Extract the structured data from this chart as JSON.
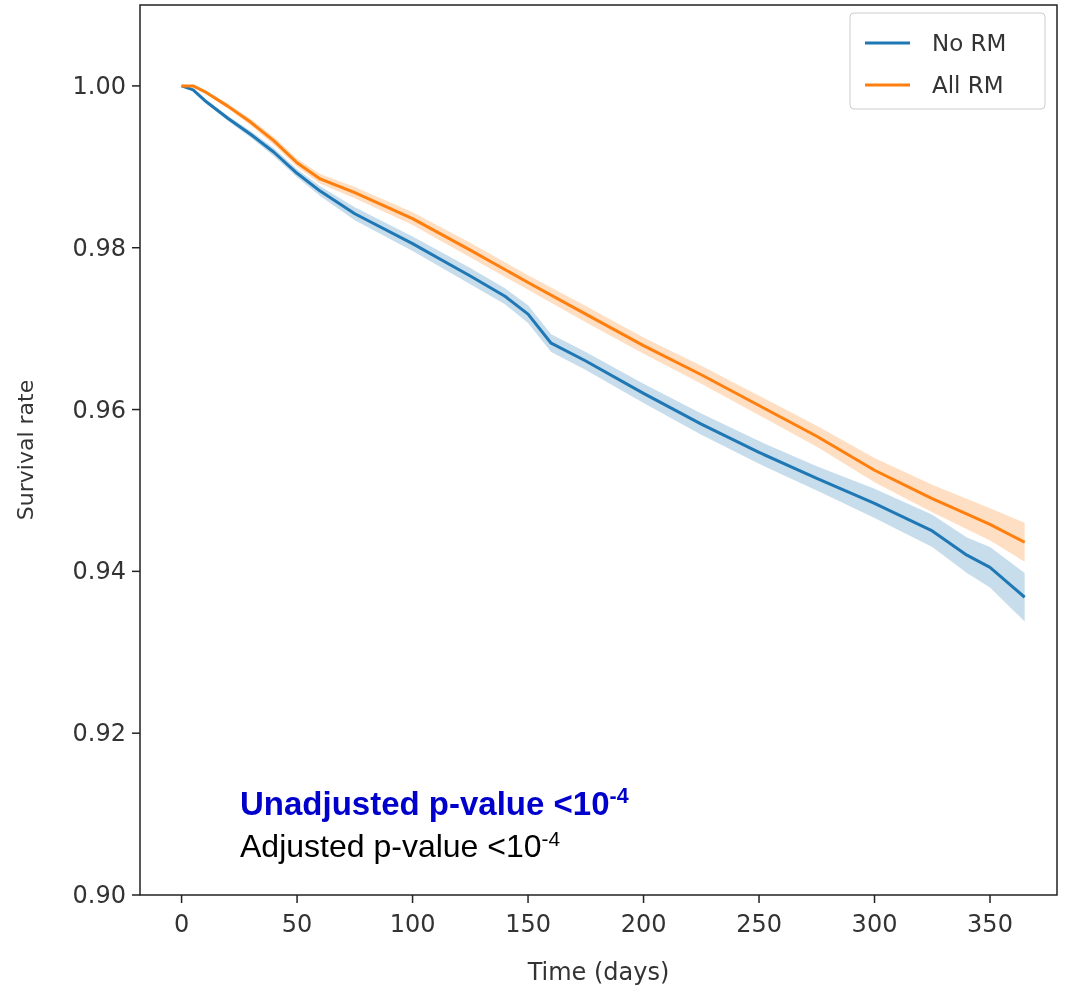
{
  "chart_data": {
    "type": "line",
    "xlabel": "Time (days)",
    "ylabel": "Survival rate",
    "xlim": [
      -18,
      379
    ],
    "ylim": [
      0.9,
      1.01
    ],
    "xticks": [
      0,
      50,
      100,
      150,
      200,
      250,
      300,
      350
    ],
    "yticks": [
      {
        "value": 0.9,
        "label": "0.90"
      },
      0.92,
      0.94,
      0.96,
      0.98,
      {
        "value": 1.0,
        "label": "1.00"
      }
    ],
    "legend": "top right",
    "grid": false,
    "annotations": [
      "Unadjusted p-value <10$^{-4}$",
      "Adjusted p-value <10$^{-4}$"
    ],
    "series": [
      {
        "name": "No RM",
        "color": "#1f77b4",
        "x": [
          0,
          5,
          10,
          20,
          30,
          40,
          50,
          60,
          75,
          100,
          125,
          140,
          150,
          160,
          175,
          200,
          225,
          250,
          275,
          300,
          325,
          340,
          350,
          365
        ],
        "values": [
          1.0,
          0.9995,
          0.9982,
          0.996,
          0.994,
          0.9918,
          0.9892,
          0.987,
          0.9842,
          0.9805,
          0.9765,
          0.974,
          0.9718,
          0.9682,
          0.966,
          0.962,
          0.9582,
          0.9547,
          0.9515,
          0.9484,
          0.945,
          0.942,
          0.9405,
          0.9368
        ],
        "lower": [
          1.0,
          0.9994,
          0.998,
          0.9957,
          0.9936,
          0.9913,
          0.9887,
          0.9864,
          0.9834,
          0.9796,
          0.9755,
          0.973,
          0.9707,
          0.9671,
          0.9649,
          0.9608,
          0.9569,
          0.9533,
          0.95,
          0.9466,
          0.943,
          0.9398,
          0.938,
          0.9338
        ],
        "upper": [
          1.0,
          0.9996,
          0.9984,
          0.9963,
          0.9944,
          0.9923,
          0.9897,
          0.9876,
          0.985,
          0.9814,
          0.9775,
          0.975,
          0.9729,
          0.9693,
          0.9671,
          0.9632,
          0.9595,
          0.9561,
          0.953,
          0.9502,
          0.947,
          0.9442,
          0.943,
          0.9398
        ]
      },
      {
        "name": "All RM",
        "color": "#ff7f0e",
        "x": [
          0,
          5,
          10,
          20,
          30,
          40,
          50,
          60,
          75,
          100,
          125,
          150,
          175,
          200,
          225,
          250,
          275,
          300,
          325,
          350,
          365
        ],
        "values": [
          1.0,
          1.0,
          0.9993,
          0.9975,
          0.9955,
          0.9932,
          0.9905,
          0.9885,
          0.9868,
          0.9836,
          0.9797,
          0.9757,
          0.9718,
          0.9679,
          0.9643,
          0.9605,
          0.9567,
          0.9525,
          0.949,
          0.9458,
          0.9436
        ],
        "lower": [
          1.0,
          0.9999,
          0.9991,
          0.9972,
          0.9951,
          0.9927,
          0.99,
          0.9879,
          0.9861,
          0.9828,
          0.9788,
          0.9748,
          0.9708,
          0.9669,
          0.9632,
          0.9593,
          0.9554,
          0.951,
          0.9473,
          0.9438,
          0.9412
        ],
        "upper": [
          1.0,
          1.0,
          0.9995,
          0.9978,
          0.9959,
          0.9937,
          0.991,
          0.9891,
          0.9875,
          0.9844,
          0.9806,
          0.9766,
          0.9728,
          0.9689,
          0.9654,
          0.9617,
          0.958,
          0.954,
          0.9507,
          0.9478,
          0.946
        ]
      }
    ]
  }
}
